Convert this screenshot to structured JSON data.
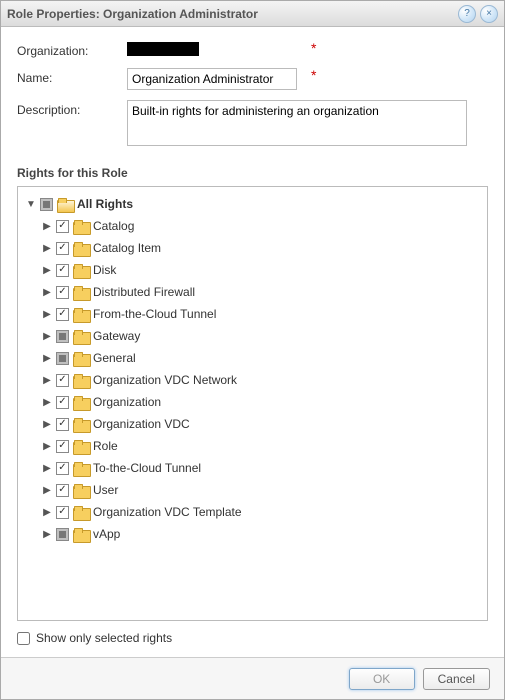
{
  "dialog": {
    "title": "Role Properties: Organization Administrator",
    "help_icon": "help-icon",
    "close_icon": "close-icon"
  },
  "form": {
    "org_label": "Organization:",
    "name_label": "Name:",
    "name_value": "Organization Administrator",
    "desc_label": "Description:",
    "desc_value": "Built-in rights for administering an organization",
    "required_marker": "*"
  },
  "rights_section_title": "Rights for this Role",
  "tree": {
    "root_label": "All Rights",
    "root_state": "indeterminate",
    "root_expanded": true,
    "children": [
      {
        "label": "Catalog",
        "state": "checked"
      },
      {
        "label": "Catalog Item",
        "state": "checked"
      },
      {
        "label": "Disk",
        "state": "checked"
      },
      {
        "label": "Distributed Firewall",
        "state": "checked"
      },
      {
        "label": "From-the-Cloud Tunnel",
        "state": "checked"
      },
      {
        "label": "Gateway",
        "state": "indeterminate"
      },
      {
        "label": "General",
        "state": "indeterminate"
      },
      {
        "label": "Organization VDC Network",
        "state": "checked"
      },
      {
        "label": "Organization",
        "state": "checked"
      },
      {
        "label": "Organization VDC",
        "state": "checked"
      },
      {
        "label": "Role",
        "state": "checked"
      },
      {
        "label": "To-the-Cloud Tunnel",
        "state": "checked"
      },
      {
        "label": "User",
        "state": "checked"
      },
      {
        "label": "Organization VDC Template",
        "state": "checked"
      },
      {
        "label": "vApp",
        "state": "indeterminate"
      }
    ]
  },
  "footer": {
    "show_only_label": "Show only selected rights",
    "show_only_checked": false
  },
  "buttons": {
    "ok": "OK",
    "cancel": "Cancel"
  }
}
